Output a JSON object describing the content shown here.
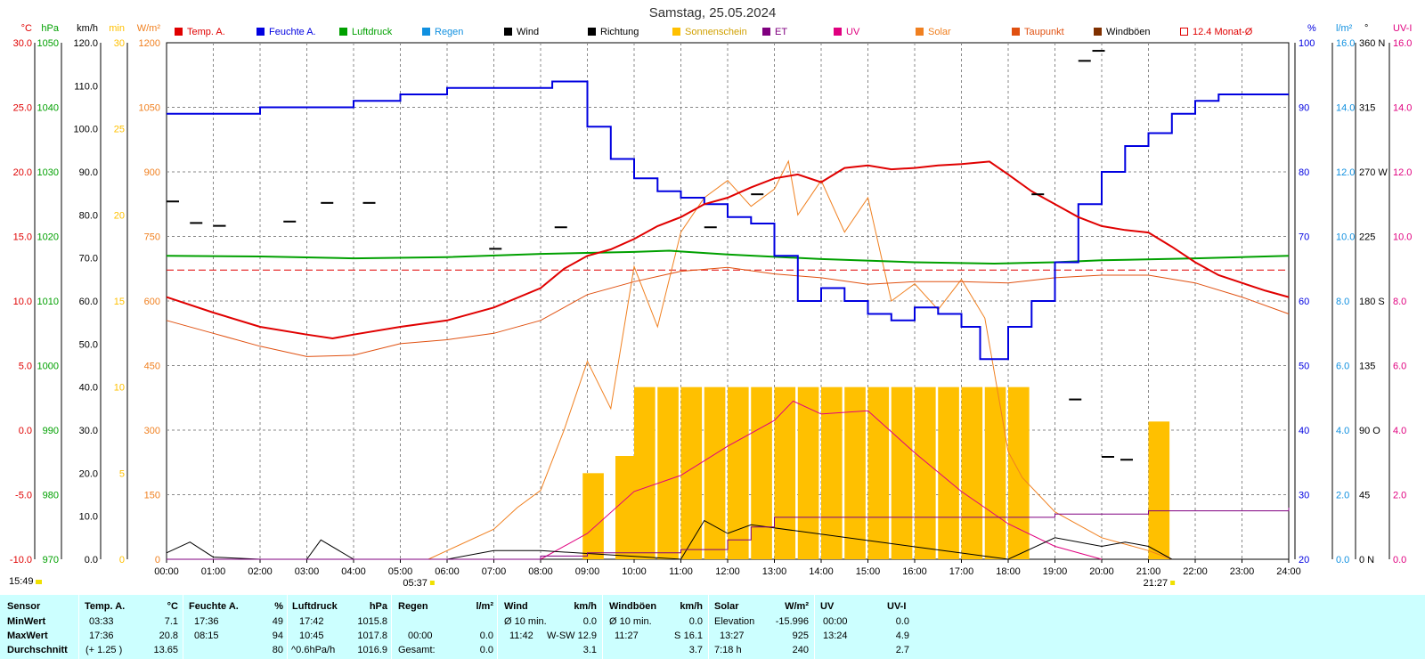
{
  "title": "Samstag, 25.05.2024",
  "colors": {
    "temp": "#e00000",
    "humidity": "#0000e0",
    "pressure": "#00a000",
    "rain": "#1090e0",
    "wind": "#000000",
    "direction": "#000000",
    "sunshine": "#ffc000",
    "et": "#800080",
    "uv": "#e0007f",
    "solar": "#f08020",
    "dewpoint": "#e05010",
    "gusts": "#803000",
    "monthavg": "#e00000",
    "grid": "#888888",
    "stats_bg": "#ccffff"
  },
  "legend": [
    {
      "label": "Temp. A.",
      "color": "#e00000",
      "outline": false
    },
    {
      "label": "Feuchte A.",
      "color": "#0000e0",
      "outline": false
    },
    {
      "label": "Luftdruck",
      "color": "#00a000",
      "outline": false
    },
    {
      "label": "Regen",
      "color": "#1090e0",
      "outline": false
    },
    {
      "label": "Wind",
      "color": "#000000",
      "outline": false
    },
    {
      "label": "Richtung",
      "color": "#000000",
      "outline": false
    },
    {
      "label": "Sonnenschein",
      "color": "#ffc000",
      "outline": false
    },
    {
      "label": "ET",
      "color": "#800080",
      "outline": false
    },
    {
      "label": "UV",
      "color": "#e0007f",
      "outline": false
    },
    {
      "label": "Solar",
      "color": "#f08020",
      "outline": false
    },
    {
      "label": "Taupunkt",
      "color": "#e05010",
      "outline": false
    },
    {
      "label": "Windböen",
      "color": "#803000",
      "outline": false
    },
    {
      "label": "12.4 Monat-Ø",
      "color": "#e00000",
      "outline": true
    }
  ],
  "axes": {
    "left": [
      {
        "unit": "°C",
        "color": "#e00000",
        "ticks": [
          "30.0",
          "25.0",
          "20.0",
          "15.0",
          "10.0",
          "5.0",
          "0.0",
          "-5.0",
          "-10.0"
        ]
      },
      {
        "unit": "hPa",
        "color": "#00a000",
        "ticks": [
          "1050",
          "1040",
          "1030",
          "1020",
          "1010",
          "1000",
          "990",
          "980",
          "970"
        ]
      },
      {
        "unit": "km/h",
        "color": "#000000",
        "ticks": [
          "120.0",
          "110.0",
          "100.0",
          "90.0",
          "80.0",
          "70.0",
          "60.0",
          "50.0",
          "40.0",
          "30.0",
          "20.0",
          "10.0",
          "0.0"
        ]
      },
      {
        "unit": "min",
        "color": "#ffc000",
        "ticks": [
          "30",
          "25",
          "20",
          "15",
          "10",
          "5",
          "0"
        ]
      },
      {
        "unit": "W/m²",
        "color": "#f08020",
        "ticks": [
          "1200",
          "1050",
          "900",
          "750",
          "600",
          "450",
          "300",
          "150",
          "0"
        ]
      }
    ],
    "right": [
      {
        "unit": "%",
        "color": "#0000e0",
        "ticks": [
          "100",
          "90",
          "80",
          "70",
          "60",
          "50",
          "40",
          "30",
          "20"
        ]
      },
      {
        "unit": "l/m²",
        "color": "#1090e0",
        "ticks": [
          "16.0",
          "14.0",
          "12.0",
          "10.0",
          "8.0",
          "6.0",
          "4.0",
          "2.0",
          "0.0"
        ]
      },
      {
        "unit": "°",
        "color": "#000000",
        "ticks": [
          "360 N",
          "315",
          "270 W",
          "225",
          "180 S",
          "135",
          "90 O",
          "45",
          "0 N"
        ]
      },
      {
        "unit": "UV-I",
        "color": "#e0007f",
        "ticks": [
          "16.0",
          "14.0",
          "12.0",
          "10.0",
          "8.0",
          "6.0",
          "4.0",
          "2.0",
          "0.0"
        ]
      }
    ],
    "x_ticks": [
      "00:00",
      "01:00",
      "02:00",
      "03:00",
      "04:00",
      "05:00",
      "06:00",
      "07:00",
      "08:00",
      "09:00",
      "10:00",
      "11:00",
      "12:00",
      "13:00",
      "14:00",
      "15:00",
      "16:00",
      "17:00",
      "18:00",
      "19:00",
      "20:00",
      "21:00",
      "22:00",
      "23:00",
      "24:00"
    ],
    "sunrise": "05:37",
    "sunset": "21:27"
  },
  "current_time": "15:49",
  "chart_data": {
    "type": "line",
    "title": "Samstag, 25.05.2024",
    "x_range_hours": [
      0,
      24
    ],
    "grid": true,
    "month_avg_temp_c": 12.4,
    "series": [
      {
        "name": "Temp. A.",
        "unit": "°C",
        "x": [
          0,
          1,
          2,
          3,
          3.55,
          4,
          5,
          6,
          7,
          8,
          8.5,
          9,
          9.5,
          10,
          10.5,
          11,
          11.5,
          12,
          12.5,
          13,
          13.5,
          14,
          14.5,
          15,
          15.5,
          16,
          16.5,
          17,
          17.6,
          18,
          18.5,
          19,
          19.5,
          20,
          20.5,
          21,
          21.5,
          22,
          22.5,
          23,
          23.5,
          24
        ],
        "values": [
          10.3,
          9.1,
          8.0,
          7.4,
          7.1,
          7.4,
          8.0,
          8.5,
          9.5,
          11.0,
          12.5,
          13.5,
          14.0,
          14.8,
          15.8,
          16.5,
          17.5,
          18.0,
          18.8,
          19.5,
          19.8,
          19.2,
          20.3,
          20.5,
          20.2,
          20.3,
          20.5,
          20.6,
          20.8,
          19.8,
          18.5,
          17.5,
          16.5,
          15.8,
          15.5,
          15.3,
          14.2,
          13.0,
          12.0,
          11.4,
          10.8,
          10.3
        ]
      },
      {
        "name": "Feuchte A.",
        "unit": "%",
        "x": [
          0,
          1,
          2,
          3,
          4,
          5,
          6,
          7,
          8,
          8.25,
          9,
          9.5,
          10,
          10.5,
          11,
          11.5,
          12,
          12.5,
          13,
          13.5,
          14,
          14.5,
          15,
          15.5,
          16,
          16.5,
          17,
          17.4,
          18,
          18.5,
          19,
          19.5,
          20,
          20.5,
          21,
          21.5,
          22,
          22.5,
          23,
          24
        ],
        "values": [
          89,
          89,
          90,
          90,
          91,
          92,
          93,
          93,
          93,
          94,
          87,
          82,
          79,
          77,
          76,
          75,
          73,
          72,
          67,
          60,
          62,
          60,
          58,
          57,
          59,
          58,
          56,
          51,
          56,
          60,
          66,
          75,
          80,
          84,
          86,
          89,
          91,
          92,
          92,
          92
        ]
      },
      {
        "name": "Luftdruck",
        "unit": "hPa",
        "x": [
          0,
          2,
          4,
          6,
          8,
          10,
          10.75,
          12,
          14,
          16,
          17.7,
          19,
          20,
          22,
          24
        ],
        "values": [
          1017.0,
          1016.9,
          1016.6,
          1016.8,
          1017.3,
          1017.6,
          1017.8,
          1017.2,
          1016.5,
          1016.0,
          1015.8,
          1016.0,
          1016.3,
          1016.6,
          1017.0
        ]
      },
      {
        "name": "Taupunkt",
        "unit": "°C",
        "x": [
          0,
          1,
          2,
          3,
          4,
          5,
          6,
          7,
          8,
          9,
          10,
          11,
          12,
          13,
          14,
          15,
          16,
          17,
          18,
          19,
          20,
          20.8,
          21,
          22,
          23,
          24
        ],
        "values": [
          8.5,
          7.5,
          6.5,
          5.7,
          5.8,
          6.7,
          7.0,
          7.5,
          8.5,
          10.5,
          11.5,
          12.3,
          12.6,
          12.1,
          11.8,
          11.3,
          11.5,
          11.5,
          11.4,
          11.8,
          12.0,
          12.0,
          12.0,
          11.4,
          10.3,
          9.0
        ]
      },
      {
        "name": "Solar",
        "unit": "W/m²",
        "x": [
          5.6,
          6,
          7,
          7.5,
          8,
          8.5,
          9,
          9.5,
          10,
          10.5,
          11,
          11.5,
          12,
          12.5,
          13,
          13.3,
          13.5,
          14,
          14.5,
          15,
          15.5,
          16,
          16.5,
          17,
          17.5,
          18,
          18.3,
          19,
          20,
          21,
          21.5
        ],
        "values": [
          0,
          20,
          70,
          120,
          160,
          300,
          460,
          350,
          680,
          540,
          760,
          840,
          880,
          820,
          860,
          925,
          800,
          880,
          760,
          840,
          600,
          640,
          580,
          650,
          560,
          250,
          190,
          110,
          50,
          20,
          0
        ]
      },
      {
        "name": "UV",
        "unit": "UV-I",
        "x": [
          8,
          9,
          10,
          11,
          12,
          13,
          13.4,
          14,
          15,
          16,
          17,
          18,
          19,
          20
        ],
        "values": [
          0,
          0.8,
          2.1,
          2.6,
          3.5,
          4.3,
          4.9,
          4.5,
          4.6,
          3.3,
          2.1,
          1.1,
          0.4,
          0
        ]
      },
      {
        "name": "Wind",
        "unit": "km/h",
        "x": [
          0,
          0.5,
          1,
          2,
          3,
          3.3,
          4,
          6,
          7,
          8,
          11,
          11.5,
          12,
          12.5,
          18,
          19,
          20,
          20.5,
          21,
          21.5,
          22,
          24
        ],
        "values": [
          1.5,
          4.0,
          0.5,
          0,
          0,
          4.5,
          0,
          0,
          2.0,
          2.0,
          0,
          9.0,
          6.0,
          8.0,
          0,
          5.0,
          3.0,
          4.0,
          3.0,
          0,
          0,
          0
        ]
      },
      {
        "name": "ET",
        "unit": "l/m²",
        "x": [
          0,
          7.9,
          8,
          9,
          11,
          12,
          12.5,
          13,
          18,
          19,
          21,
          24
        ],
        "values": [
          0,
          0,
          0.1,
          0.2,
          0.3,
          0.6,
          1.0,
          1.3,
          1.3,
          1.4,
          1.5,
          1.6
        ]
      },
      {
        "name": "Sonnenschein",
        "unit": "min",
        "x": [
          8.9,
          9.6,
          10,
          10.5,
          11,
          11.5,
          12,
          12.5,
          13,
          13.5,
          14,
          14.5,
          15,
          15.5,
          16,
          16.5,
          17,
          17.5,
          18,
          21
        ],
        "values": [
          5,
          6,
          10,
          10,
          10,
          10,
          10,
          10,
          10,
          10,
          10,
          10,
          10,
          10,
          10,
          10,
          10,
          10,
          10,
          8
        ]
      }
    ],
    "wind_direction_deg": [
      {
        "x": 0,
        "v": 250
      },
      {
        "x": 0.5,
        "v": 235
      },
      {
        "x": 1,
        "v": 233
      },
      {
        "x": 2.5,
        "v": 236
      },
      {
        "x": 3.3,
        "v": 249
      },
      {
        "x": 4.2,
        "v": 249
      },
      {
        "x": 6.9,
        "v": 217
      },
      {
        "x": 8.3,
        "v": 232
      },
      {
        "x": 11.5,
        "v": 232
      },
      {
        "x": 12.5,
        "v": 255
      },
      {
        "x": 18.5,
        "v": 255
      },
      {
        "x": 19.3,
        "v": 112
      },
      {
        "x": 20,
        "v": 72
      },
      {
        "x": 20.4,
        "v": 70
      },
      {
        "x": 19.5,
        "v": 348
      },
      {
        "x": 19.8,
        "v": 355
      }
    ]
  },
  "stats": {
    "sensor_label": "Sensor",
    "min_label": "MinWert",
    "max_label": "MaxWert",
    "avg_label": "Durchschnitt",
    "temp": {
      "header": "Temp. A.",
      "unit": "°C",
      "min_time": "03:33",
      "min": "7.1",
      "max_time": "17:36",
      "max": "20.8",
      "avg_note": "(+ 1.25 )",
      "avg": "13.65"
    },
    "hum": {
      "header": "Feuchte A.",
      "unit": "%",
      "min_time": "17:36",
      "min": "49",
      "max_time": "08:15",
      "max": "94",
      "avg": "80"
    },
    "press": {
      "header": "Luftdruck",
      "unit": "hPa",
      "min_time": "17:42",
      "min": "1015.8",
      "max_time": "10:45",
      "max": "1017.8",
      "avg_note": "^0.6hPa/h",
      "avg": "1016.9"
    },
    "rain": {
      "header": "Regen",
      "unit": "l/m²",
      "max_time": "00:00",
      "max": "0.0",
      "total_label": "Gesamt:",
      "total": "0.0"
    },
    "wind": {
      "header": "Wind",
      "unit": "km/h",
      "min_label": "Ø 10 min.",
      "min": "0.0",
      "max_time": "11:42",
      "max_dir": "W-SW",
      "max": "12.9",
      "avg": "3.1"
    },
    "gust": {
      "header": "Windböen",
      "unit": "km/h",
      "min_label": "Ø 10 min.",
      "min": "0.0",
      "max_time": "11:27",
      "max_dir": "S",
      "max": "16.1",
      "avg": "3.7"
    },
    "solar": {
      "header": "Solar",
      "unit": "W/m²",
      "min_label": "Elevation",
      "min": "-15.996",
      "max_time": "13:27",
      "max": "925",
      "avg_label": "7:18 h",
      "avg": "240"
    },
    "uv": {
      "header": "UV",
      "unit": "UV-I",
      "min_time": "00:00",
      "min": "0.0",
      "max_time": "13:24",
      "max": "4.9",
      "avg": "2.7"
    }
  }
}
